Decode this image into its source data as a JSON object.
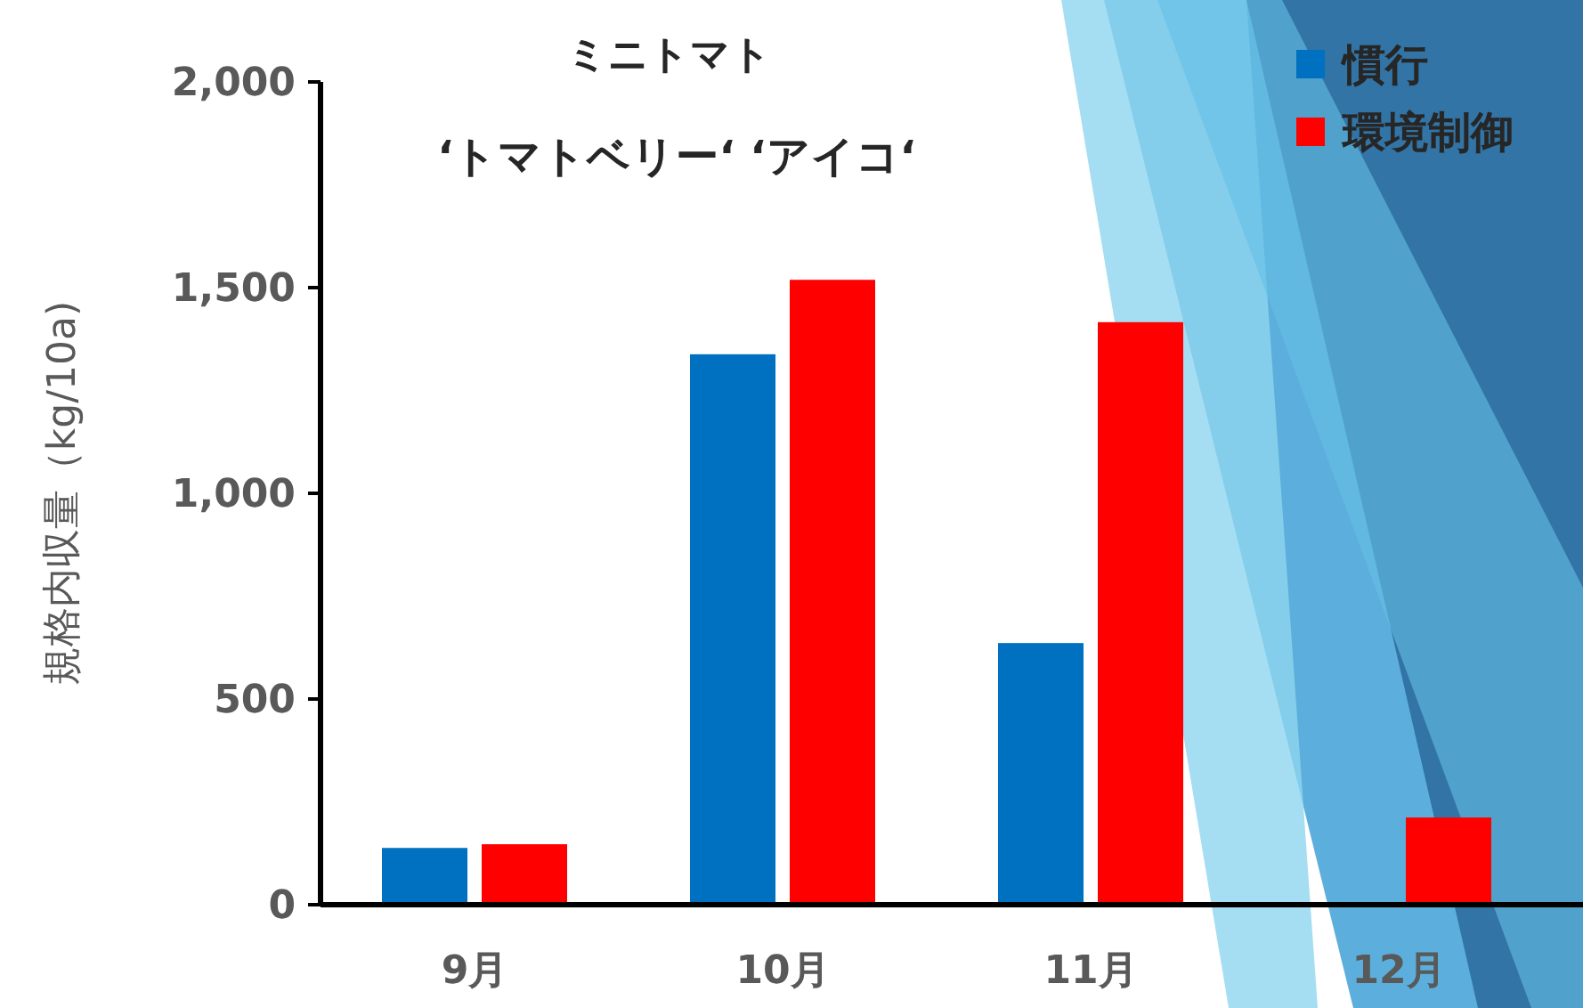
{
  "chart_data": {
    "type": "bar",
    "title": "ミニトマト",
    "subtitle": "‘トマトベリー‘ ‘アイコ‘",
    "ylabel": "規格内収量（kg/10a)",
    "categories": [
      "9月",
      "10月",
      "11月",
      "12月"
    ],
    "series": [
      {
        "name": "慣行",
        "color": "#0070c0",
        "values": [
          138,
          1338,
          636,
          null
        ]
      },
      {
        "name": "環境制御",
        "color": "#ff0000",
        "values": [
          147,
          1519,
          1416,
          212
        ]
      }
    ],
    "ylim": [
      0,
      2000
    ],
    "yticks": [
      {
        "value": 0,
        "label": "0"
      },
      {
        "value": 500,
        "label": "500"
      },
      {
        "value": 1000,
        "label": "1,000"
      },
      {
        "value": 1500,
        "label": "1,500"
      },
      {
        "value": 2000,
        "label": "2,000"
      }
    ],
    "legend": "top right"
  }
}
